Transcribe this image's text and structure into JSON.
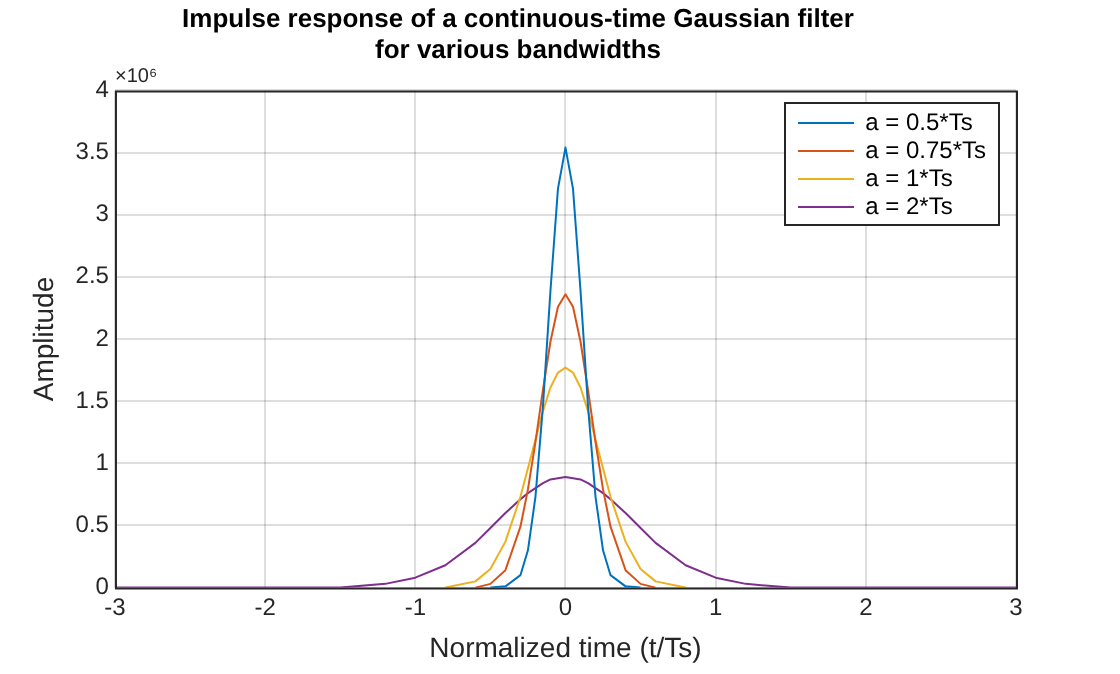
{
  "chart_data": {
    "type": "line",
    "title": "Impulse response of a continuous-time Gaussian filter\nfor various bandwidths",
    "xlabel": "Normalized time (t/Ts)",
    "ylabel": "Amplitude",
    "annotations": [
      "×10⁶"
    ],
    "x": [
      -3,
      -1.5,
      -1.2,
      -1,
      -0.8,
      -0.6,
      -0.5,
      -0.4,
      -0.3,
      -0.25,
      -0.2,
      -0.15,
      -0.1,
      -0.05,
      0,
      0.05,
      0.1,
      0.15,
      0.2,
      0.25,
      0.3,
      0.4,
      0.5,
      0.6,
      0.8,
      1,
      1.2,
      1.5,
      3
    ],
    "series": [
      {
        "name": "a = 0.5*Ts",
        "color": "#0072bd",
        "x": [
          -0.5,
          -0.4,
          -0.3,
          -0.25,
          -0.2,
          -0.15,
          -0.1,
          -0.05,
          0,
          0.05,
          0.1,
          0.15,
          0.2,
          0.25,
          0.3,
          0.4,
          0.5
        ],
        "values": [
          0,
          0.01,
          0.1,
          0.3,
          0.73,
          1.46,
          2.39,
          3.21,
          3.54,
          3.21,
          2.39,
          1.46,
          0.73,
          0.3,
          0.1,
          0.01,
          0
        ]
      },
      {
        "name": "a = 0.75*Ts",
        "color": "#d95319",
        "x": [
          -0.6,
          -0.5,
          -0.4,
          -0.3,
          -0.25,
          -0.2,
          -0.15,
          -0.1,
          -0.05,
          0,
          0.05,
          0.1,
          0.15,
          0.2,
          0.25,
          0.3,
          0.4,
          0.5,
          0.6
        ],
        "values": [
          0,
          0.03,
          0.14,
          0.49,
          0.79,
          1.17,
          1.59,
          1.98,
          2.26,
          2.36,
          2.26,
          1.98,
          1.59,
          1.17,
          0.79,
          0.49,
          0.14,
          0.03,
          0
        ]
      },
      {
        "name": "a = 1*Ts",
        "color": "#edb120",
        "x": [
          -0.8,
          -0.6,
          -0.5,
          -0.4,
          -0.3,
          -0.25,
          -0.2,
          -0.15,
          -0.1,
          -0.05,
          0,
          0.05,
          0.1,
          0.15,
          0.2,
          0.25,
          0.3,
          0.4,
          0.5,
          0.6,
          0.8
        ],
        "values": [
          0,
          0.05,
          0.15,
          0.37,
          0.73,
          0.96,
          1.19,
          1.42,
          1.61,
          1.73,
          1.77,
          1.73,
          1.61,
          1.42,
          1.19,
          0.96,
          0.73,
          0.37,
          0.15,
          0.05,
          0
        ]
      },
      {
        "name": "a = 2*Ts",
        "color": "#7e2f8e",
        "values": [
          0,
          0,
          0.03,
          0.08,
          0.18,
          0.36,
          0.48,
          0.6,
          0.71,
          0.76,
          0.8,
          0.84,
          0.87,
          0.88,
          0.89,
          0.88,
          0.87,
          0.84,
          0.8,
          0.76,
          0.71,
          0.6,
          0.48,
          0.36,
          0.18,
          0.08,
          0.03,
          0,
          0
        ]
      }
    ],
    "xlim": [
      -3,
      3
    ],
    "xticks": [
      -3,
      -2,
      -1,
      0,
      1,
      2,
      3
    ],
    "ylim": [
      0,
      4
    ],
    "yticks": [
      0,
      0.5,
      1,
      1.5,
      2,
      2.5,
      3,
      3.5,
      4
    ],
    "grid": true,
    "legend": "top right",
    "marker": "none",
    "line_style": "solid"
  }
}
